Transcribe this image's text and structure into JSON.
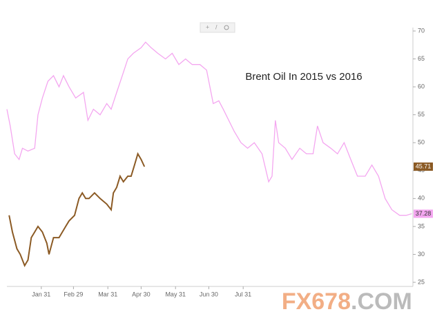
{
  "chart_data": {
    "type": "line",
    "title": "Brent Oil In 2015 vs 2016",
    "watermark": [
      "FX678",
      ".COM"
    ],
    "xlim": [
      0,
      366
    ],
    "ylim": [
      25,
      70
    ],
    "xticks": [
      {
        "value": 31,
        "label": "Jan 31"
      },
      {
        "value": 60,
        "label": "Feb 29"
      },
      {
        "value": 91,
        "label": "Mar 31"
      },
      {
        "value": 121,
        "label": "Apr 30"
      },
      {
        "value": 152,
        "label": "May 31"
      },
      {
        "value": 182,
        "label": "Jun 30"
      },
      {
        "value": 213,
        "label": "Jul 31"
      }
    ],
    "yticks": [
      25,
      30,
      35,
      40,
      45,
      50,
      55,
      60,
      65,
      70
    ],
    "series": [
      {
        "color": "#f4a6f0",
        "x": [
          0,
          3,
          7,
          11,
          14,
          19,
          25,
          28,
          32,
          37,
          42,
          47,
          51,
          56,
          62,
          69,
          73,
          78,
          84,
          90,
          94,
          99,
          104,
          109,
          114,
          121,
          125,
          130,
          136,
          143,
          149,
          155,
          161,
          167,
          174,
          180,
          186,
          191,
          195,
          205,
          211,
          217,
          223,
          230,
          236,
          239,
          242,
          245,
          251,
          257,
          264,
          270,
          276,
          280,
          285,
          292,
          298,
          304,
          310,
          316,
          323,
          329,
          335,
          341,
          347,
          354,
          360,
          365
        ],
        "values": [
          56,
          53,
          48,
          47,
          49,
          48.5,
          49,
          55,
          58,
          61,
          62,
          60,
          62,
          60,
          58,
          59,
          54,
          56,
          55,
          57,
          56,
          59,
          62,
          65,
          66,
          67,
          68,
          67,
          66,
          65,
          66,
          64,
          65,
          64,
          64,
          63,
          57,
          57.5,
          56,
          52,
          50,
          49,
          50,
          48,
          43,
          44,
          54,
          50,
          49,
          47,
          49,
          48,
          48,
          53,
          50,
          49,
          48,
          50,
          47,
          44,
          44,
          46,
          44,
          40,
          38,
          37,
          37,
          37.28
        ]
      },
      {
        "color": "#8b5a24",
        "x": [
          2,
          5,
          9,
          12,
          16,
          19,
          22,
          25,
          28,
          32,
          36,
          38,
          42,
          47,
          50,
          53,
          56,
          61,
          65,
          68,
          71,
          74,
          79,
          84,
          90,
          94,
          96,
          99,
          102,
          105,
          109,
          112,
          115,
          118,
          121,
          124
        ],
        "values": [
          37,
          34,
          31,
          30,
          28,
          29,
          33,
          34,
          35,
          34,
          32,
          30,
          33,
          33,
          34,
          35,
          36,
          37,
          40,
          41,
          40,
          40,
          41,
          40,
          39,
          38,
          41,
          42,
          44,
          43,
          44,
          44,
          46,
          48,
          47,
          45.71
        ]
      }
    ]
  }
}
